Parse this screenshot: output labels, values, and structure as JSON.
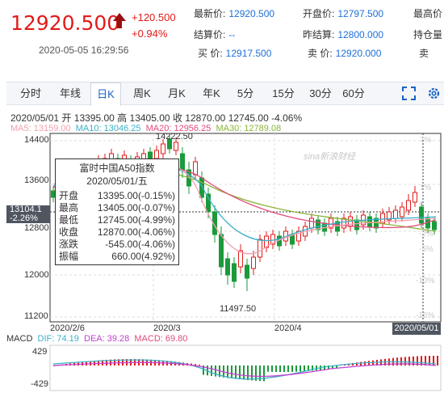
{
  "quote": {
    "price": "12920.500",
    "change": "+120.500",
    "change_pct": "+0.94%",
    "timestamp": "2020-05-05 16:29:56",
    "fields": [
      {
        "label": "最新价:",
        "value": "12920.500"
      },
      {
        "label": "结算价:",
        "value": "--"
      },
      {
        "label": "买 价:",
        "value": "12917.500"
      },
      {
        "label": "开盘价:",
        "value": "12797.500"
      },
      {
        "label": "昨结算:",
        "value": "12800.000"
      },
      {
        "label": "卖 价:",
        "value": "12920.000"
      },
      {
        "label": "最高价",
        "value": ""
      },
      {
        "label": "持仓量",
        "value": ""
      },
      {
        "label": "卖",
        "value": ""
      }
    ]
  },
  "tabs": [
    "分时",
    "年线",
    "日K",
    "周K",
    "月K",
    "年K",
    "5分",
    "15分",
    "30分",
    "60分"
  ],
  "active_tab": "日K",
  "ohlc_line": {
    "date": "2020/05/01",
    "open_label": "开",
    "open": "13395.00",
    "high_label": "高",
    "high": "13405.00",
    "close_label": "收",
    "close": "12870.00",
    "low": "12745.00",
    "pct": "-4.06%"
  },
  "ma": [
    {
      "label": "MA5: 13159.00",
      "color": "#f0a0b0"
    },
    {
      "label": "MA10: 13046.25",
      "color": "#3ab0c8"
    },
    {
      "label": "MA20: 12956.25",
      "color": "#e24a7a"
    },
    {
      "label": "MA30: 12789.08",
      "color": "#8bb53a"
    }
  ],
  "y_axis": [
    "14400",
    "13600",
    "12800",
    "12000",
    "11200"
  ],
  "pct_axis": [
    "7%",
    "1%",
    "-2%",
    "-5%",
    "-10%",
    "-16%"
  ],
  "x_axis": [
    "2020/2/6",
    "2020/3",
    "2020/4"
  ],
  "annotations": {
    "high": "14222.50",
    "low": "11497.50"
  },
  "current_tag": {
    "value": "13104.1",
    "pct": "-2.26%"
  },
  "date_tag": "2020/05/01",
  "watermark": "sina新浪财经",
  "tooltip": {
    "title": "富时中国A50指数",
    "date": "2020/05/01/五",
    "rows": [
      {
        "k": "开盘",
        "v": "13395.00(-0.15%)"
      },
      {
        "k": "最高",
        "v": "13405.00(-0.07%)"
      },
      {
        "k": "最低",
        "v": "12745.00(-4.99%)"
      },
      {
        "k": "收盘",
        "v": "12870.00(-4.06%)"
      },
      {
        "k": "涨跌",
        "v": "-545.00(-4.06%)"
      },
      {
        "k": "振幅",
        "v": "660.00(4.92%)"
      }
    ]
  },
  "macd": {
    "title": "MACD",
    "dif": "DIF: 74.19",
    "dea": "DEA: 39.28",
    "macd": "MACD: 69.80",
    "y_top": "429",
    "y_bottom": "-429"
  },
  "colors": {
    "up": "#e21a1a",
    "down": "#1a9a3a",
    "accent": "#1e6fd8"
  }
}
